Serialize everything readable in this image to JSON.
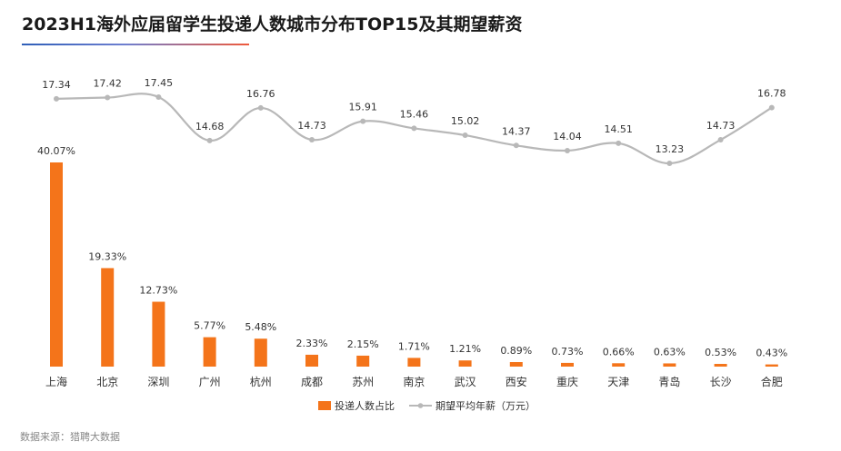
{
  "title": "2023H1海外应届留学生投递人数城市分布TOP15及其期望薪资",
  "source": "数据来源：猎聘大数据",
  "colors": {
    "bar": "#f4741a",
    "line": "#b8b8b8",
    "text": "#333333"
  },
  "chart_data": {
    "type": "bar",
    "categories": [
      "上海",
      "北京",
      "深圳",
      "广州",
      "杭州",
      "成都",
      "苏州",
      "南京",
      "武汉",
      "西安",
      "重庆",
      "天津",
      "青岛",
      "长沙",
      "合肥"
    ],
    "legend_position": "bottom",
    "grid": false,
    "series": [
      {
        "name": "投递人数占比",
        "type": "bar",
        "values": [
          40.07,
          19.33,
          12.73,
          5.77,
          5.48,
          2.33,
          2.15,
          1.71,
          1.21,
          0.89,
          0.73,
          0.66,
          0.63,
          0.53,
          0.43
        ],
        "labels": [
          "40.07%",
          "19.33%",
          "12.73%",
          "5.77%",
          "5.48%",
          "2.33%",
          "2.15%",
          "1.71%",
          "1.21%",
          "0.89%",
          "0.73%",
          "0.66%",
          "0.63%",
          "0.53%",
          "0.43%"
        ]
      },
      {
        "name": "期望平均年薪（万元）",
        "type": "line",
        "values": [
          17.34,
          17.42,
          17.45,
          14.68,
          16.76,
          14.73,
          15.91,
          15.46,
          15.02,
          14.37,
          14.04,
          14.51,
          13.23,
          14.73,
          16.78
        ],
        "labels": [
          "17.34",
          "17.42",
          "17.45",
          "14.68",
          "16.76",
          "14.73",
          "15.91",
          "15.46",
          "15.02",
          "14.37",
          "14.04",
          "14.51",
          "13.23",
          "14.73",
          "16.78"
        ]
      }
    ]
  }
}
